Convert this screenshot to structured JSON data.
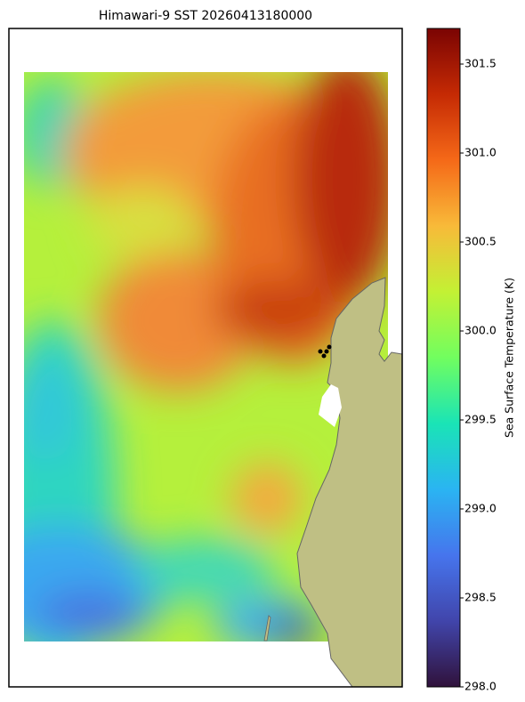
{
  "chart_data": {
    "type": "heatmap",
    "title": "Himawari-9 SST 20260413180000",
    "colorbar_label": "Sea Surface Temperature (K)",
    "clim": [
      298.0,
      301.7
    ],
    "cticks": [
      {
        "value": 298.0,
        "label": "298.0"
      },
      298.5,
      {
        "value": 299.0,
        "label": "299.0"
      },
      299.5,
      {
        "value": 300.0,
        "label": "300.0"
      },
      300.5,
      {
        "value": 301.0,
        "label": "301.0"
      },
      301.5
    ]
  }
}
